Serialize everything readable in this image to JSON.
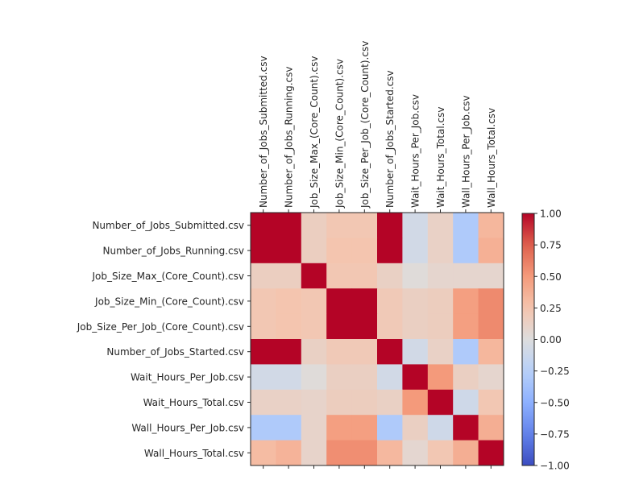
{
  "chart_data": {
    "type": "heatmap",
    "title": "",
    "xlabel": "",
    "ylabel": "",
    "colormap": "coolwarm",
    "vmin": -1.0,
    "vmax": 1.0,
    "x_tick_position": "top",
    "labels": [
      "Number_of_Jobs_Submitted.csv",
      "Number_of_Jobs_Running.csv",
      "Job_Size_Max_(Core_Count).csv",
      "Job_Size_Min_(Core_Count).csv",
      "Job_Size_Per_Job_(Core_Count).csv",
      "Number_of_Jobs_Started.csv",
      "Wait_Hours_Per_Job.csv",
      "Wait_Hours_Total.csv",
      "Wall_Hours_Per_Job.csv",
      "Wall_Hours_Total.csv"
    ],
    "matrix": [
      [
        1.0,
        1.0,
        0.15,
        0.22,
        0.22,
        1.0,
        -0.08,
        0.12,
        -0.3,
        0.33
      ],
      [
        1.0,
        1.0,
        0.15,
        0.24,
        0.24,
        1.0,
        -0.08,
        0.12,
        -0.3,
        0.37
      ],
      [
        0.15,
        0.15,
        1.0,
        0.22,
        0.22,
        0.13,
        0.02,
        0.08,
        0.08,
        0.08
      ],
      [
        0.22,
        0.24,
        0.22,
        1.0,
        1.0,
        0.2,
        0.14,
        0.16,
        0.47,
        0.57
      ],
      [
        0.22,
        0.24,
        0.22,
        1.0,
        1.0,
        0.2,
        0.14,
        0.16,
        0.47,
        0.57
      ],
      [
        1.0,
        1.0,
        0.13,
        0.2,
        0.2,
        1.0,
        -0.08,
        0.12,
        -0.3,
        0.33
      ],
      [
        -0.08,
        -0.08,
        0.02,
        0.14,
        0.14,
        -0.08,
        1.0,
        0.5,
        0.14,
        0.08
      ],
      [
        0.12,
        0.12,
        0.1,
        0.16,
        0.16,
        0.13,
        0.5,
        1.0,
        -0.1,
        0.22
      ],
      [
        -0.3,
        -0.3,
        0.1,
        0.47,
        0.47,
        -0.3,
        0.14,
        -0.1,
        1.0,
        0.38
      ],
      [
        0.3,
        0.35,
        0.1,
        0.55,
        0.55,
        0.32,
        0.07,
        0.22,
        0.38,
        1.0
      ]
    ],
    "colorbar": {
      "ticks": [
        1.0,
        0.75,
        0.5,
        0.25,
        0.0,
        -0.25,
        -0.5,
        -0.75,
        -1.0
      ],
      "tick_labels": [
        "1.00",
        "0.75",
        "0.50",
        "0.25",
        "0.00",
        "−0.25",
        "−0.50",
        "−0.75",
        "−1.00"
      ]
    },
    "grid": false
  }
}
